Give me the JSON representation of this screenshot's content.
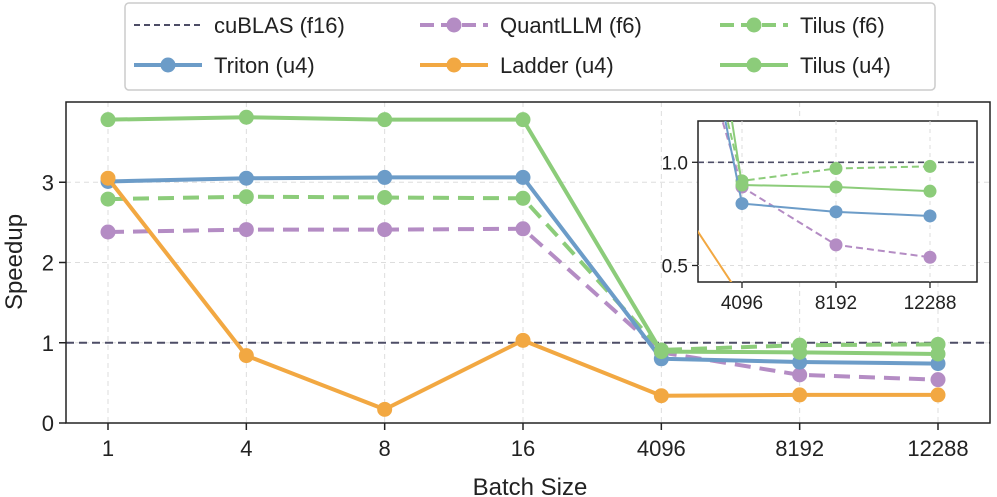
{
  "chart_data": {
    "type": "line",
    "xlabel": "Batch Size",
    "ylabel": "Speedup",
    "categories": [
      "1",
      "4",
      "8",
      "16",
      "4096",
      "8192",
      "12288"
    ],
    "ylim": [
      0,
      4.0
    ],
    "yticks": [
      0,
      1,
      2,
      3
    ],
    "grid": true,
    "legend_position": "top-center",
    "series": [
      {
        "name": "cuBLAS (f16)",
        "color": "#4d4d66",
        "style": "dashed-baseline",
        "values": [
          1,
          1,
          1,
          1,
          1,
          1,
          1
        ]
      },
      {
        "name": "QuantLLM (f6)",
        "color": "#b48cc4",
        "style": "dashed",
        "values": [
          2.38,
          2.41,
          2.41,
          2.42,
          0.88,
          0.6,
          0.54
        ]
      },
      {
        "name": "Tilus (f6)",
        "color": "#8ccc7a",
        "style": "dashed",
        "values": [
          2.79,
          2.82,
          2.81,
          2.8,
          0.91,
          0.97,
          0.98
        ]
      },
      {
        "name": "Triton (u4)",
        "color": "#6c9cc8",
        "style": "solid",
        "values": [
          3.01,
          3.05,
          3.06,
          3.06,
          0.8,
          0.76,
          0.74
        ]
      },
      {
        "name": "Ladder (u4)",
        "color": "#f2a842",
        "style": "solid",
        "values": [
          3.05,
          0.84,
          0.17,
          1.03,
          0.34,
          0.35,
          0.35
        ]
      },
      {
        "name": "Tilus (u4)",
        "color": "#8ccc7a",
        "style": "solid",
        "values": [
          3.78,
          3.81,
          3.78,
          3.78,
          0.89,
          0.88,
          0.86
        ]
      }
    ],
    "inset": {
      "categories": [
        "4096",
        "8192",
        "12288"
      ],
      "ylim": [
        0.42,
        1.2
      ],
      "yticks": [
        0.5,
        1.0
      ],
      "ytick_labels": [
        "0.5",
        "1.0"
      ]
    }
  }
}
